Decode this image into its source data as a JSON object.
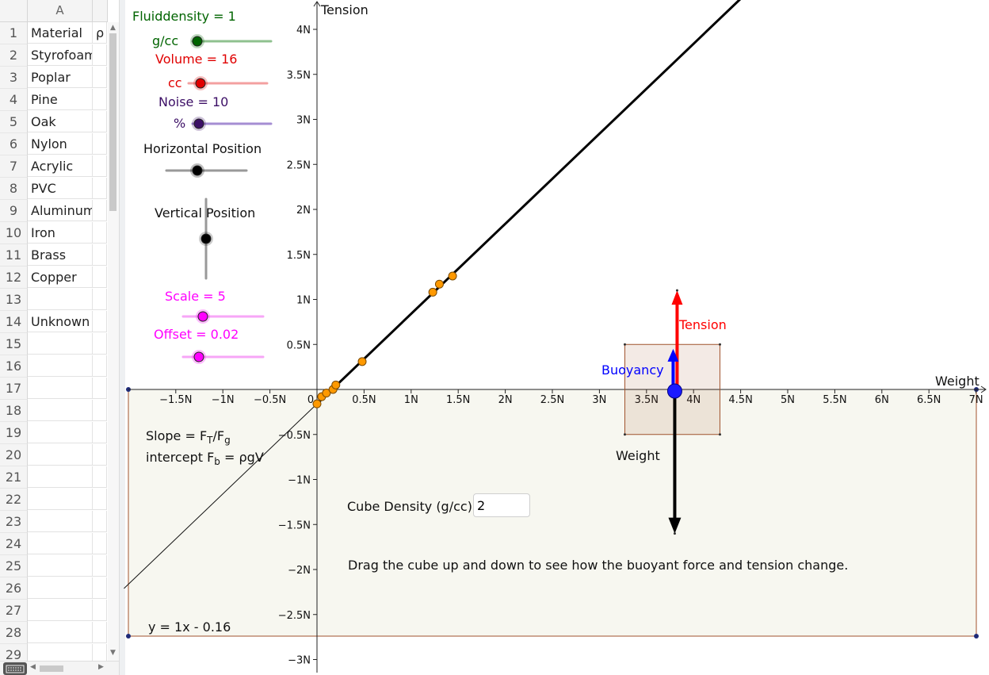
{
  "spreadsheet": {
    "column_header": "A",
    "rows": [
      {
        "n": "1",
        "a": "Material",
        "b": "ρ"
      },
      {
        "n": "2",
        "a": "Styrofoam",
        "b": ""
      },
      {
        "n": "3",
        "a": "Poplar",
        "b": ""
      },
      {
        "n": "4",
        "a": "Pine",
        "b": ""
      },
      {
        "n": "5",
        "a": "Oak",
        "b": ""
      },
      {
        "n": "6",
        "a": "Nylon",
        "b": ""
      },
      {
        "n": "7",
        "a": "Acrylic",
        "b": ""
      },
      {
        "n": "8",
        "a": "PVC",
        "b": ""
      },
      {
        "n": "9",
        "a": "Aluminum",
        "b": ""
      },
      {
        "n": "10",
        "a": "Iron",
        "b": ""
      },
      {
        "n": "11",
        "a": "Brass",
        "b": ""
      },
      {
        "n": "12",
        "a": "Copper",
        "b": ""
      },
      {
        "n": "13",
        "a": "",
        "b": ""
      },
      {
        "n": "14",
        "a": "Unknown",
        "b": ""
      },
      {
        "n": "15",
        "a": "",
        "b": ""
      },
      {
        "n": "16",
        "a": "",
        "b": ""
      },
      {
        "n": "17",
        "a": "",
        "b": ""
      },
      {
        "n": "18",
        "a": "",
        "b": ""
      },
      {
        "n": "19",
        "a": "",
        "b": ""
      },
      {
        "n": "20",
        "a": "",
        "b": ""
      },
      {
        "n": "21",
        "a": "",
        "b": ""
      },
      {
        "n": "22",
        "a": "",
        "b": ""
      },
      {
        "n": "23",
        "a": "",
        "b": ""
      },
      {
        "n": "24",
        "a": "",
        "b": ""
      },
      {
        "n": "25",
        "a": "",
        "b": ""
      },
      {
        "n": "26",
        "a": "",
        "b": ""
      },
      {
        "n": "27",
        "a": "",
        "b": ""
      },
      {
        "n": "28",
        "a": "",
        "b": ""
      },
      {
        "n": "29",
        "a": "",
        "b": ""
      }
    ]
  },
  "sliders": {
    "fluid_density": {
      "label": "Fluiddensity = 1",
      "unit": "g/cc",
      "color": "#006400",
      "track": "#8fc18f",
      "value": 1
    },
    "volume": {
      "label": "Volume = 16",
      "unit": "cc",
      "color": "#e00000",
      "track": "#f3a0a0",
      "value": 16
    },
    "noise": {
      "label": "Noise = 10",
      "unit": "%",
      "color": "#3c0f66",
      "track": "#a58ed3",
      "value": 10
    },
    "horizontal": {
      "label": "Horizontal Position",
      "color": "#000000",
      "track": "#999999"
    },
    "vertical": {
      "label": "Vertical Position",
      "color": "#000000",
      "track": "#999999"
    },
    "scale": {
      "label": "Scale = 5",
      "color": "#ff00ff",
      "track": "#f7a6f7",
      "value": 5
    },
    "offset": {
      "label": "Offset = 0.02",
      "color": "#ff00ff",
      "track": "#f7a6f7",
      "value": 0.02
    }
  },
  "graph": {
    "y_axis_label": "Tension",
    "x_axis_label": "Weight",
    "x_ticks": [
      "−1.5N",
      "−1N",
      "−0.5N",
      "0",
      "0.5N",
      "1N",
      "1.5N",
      "2N",
      "2.5N",
      "3N",
      "3.5N",
      "4N",
      "4.5N",
      "5N",
      "5.5N",
      "6N",
      "6.5N",
      "7N"
    ],
    "y_ticks": [
      "4N",
      "3.5N",
      "3N",
      "2.5N",
      "2N",
      "1.5N",
      "1N",
      "0.5N",
      "−0.5N",
      "−1N",
      "−1.5N",
      "−2N",
      "−2.5N",
      "−3N"
    ],
    "slope_text_main": "Slope = F",
    "slope_sub1": "T",
    "slope_mid": "/F",
    "slope_sub2": "g",
    "intercept_main": "intercept F",
    "intercept_sub": "b",
    "intercept_rest": " = ρgV",
    "fit_equation": "y = 1x - 0.16",
    "tension_label": "Tension",
    "buoyancy_label": "Buoyancy",
    "weight_label": "Weight",
    "cube_density_label": "Cube Density (g/cc)",
    "cube_density_value": "2",
    "instruction": "Drag the cube up and down to see how the buoyant force and tension change.",
    "colors": {
      "tension": "#ff0000",
      "buoyancy": "#0000ff",
      "weight": "#000000",
      "points": "#ff9900",
      "box_border": "#a0522d",
      "box_fill": "#f7f7f0"
    }
  },
  "chart_data": {
    "type": "scatter",
    "xlabel": "Weight",
    "ylabel": "Tension",
    "xlim": [
      -2.0,
      7.1
    ],
    "ylim": [
      -3.1,
      4.3
    ],
    "fit_line": {
      "slope": 1,
      "intercept": -0.16
    },
    "points": [
      {
        "x": 0.0,
        "y": -0.16
      },
      {
        "x": 0.05,
        "y": -0.08
      },
      {
        "x": 0.1,
        "y": -0.04
      },
      {
        "x": 0.17,
        "y": 0.0
      },
      {
        "x": 0.2,
        "y": 0.05
      },
      {
        "x": 0.48,
        "y": 0.31
      },
      {
        "x": 1.23,
        "y": 1.08
      },
      {
        "x": 1.3,
        "y": 1.17
      },
      {
        "x": 1.44,
        "y": 1.26
      }
    ],
    "forces": {
      "position_x": 3.8,
      "tension": 1.1,
      "buoyancy": 0.45,
      "weight": -1.6
    },
    "cube": {
      "x_range": [
        3.27,
        4.28
      ],
      "y_range": [
        -0.5,
        0.5
      ]
    }
  }
}
